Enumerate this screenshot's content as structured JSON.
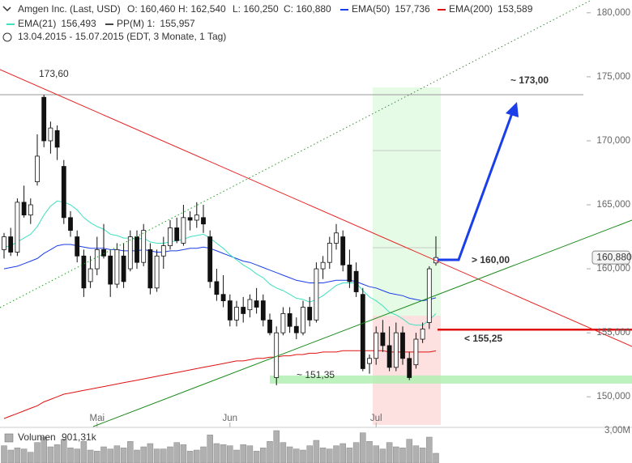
{
  "chart_data": {
    "type": "candlestick",
    "title": "Amgen Inc. (Last, USD)",
    "ohlc_header": [
      "O: 160,460",
      "H: 162,540",
      "L: 160,250",
      "C: 160,880"
    ],
    "date_range": "13.04.2015 - 15.07.2015 (EDT, 3 Monate, 1 Tag)",
    "categories": [
      null,
      null,
      null,
      null,
      null,
      null,
      null,
      null,
      null,
      null,
      null,
      null,
      null,
      null,
      "Mai",
      null,
      null,
      null,
      null,
      null,
      null,
      null,
      null,
      null,
      null,
      null,
      null,
      null,
      null,
      null,
      null,
      null,
      null,
      null,
      "Jun",
      null,
      null,
      null,
      null,
      null,
      null,
      null,
      null,
      null,
      null,
      null,
      null,
      null,
      null,
      null,
      null,
      null,
      null,
      null,
      null,
      null,
      "Jul",
      null,
      null,
      null,
      null,
      null,
      null,
      null,
      null,
      null
    ],
    "open": [
      161.5,
      162.5,
      161.3,
      165.2,
      164.2,
      166.8,
      173.4,
      170.0,
      170.8,
      168.0,
      164.0,
      162.5,
      161.0,
      159.0,
      160.0,
      161.5,
      161.0,
      158.8,
      161.0,
      160.0,
      162.5,
      160.5,
      161.5,
      158.5,
      161.0,
      161.8,
      163.2,
      162.0,
      164.0,
      163.8,
      164.0,
      162.5,
      159.0,
      158.0,
      157.5,
      156.0,
      157.0,
      156.8,
      157.5,
      157.5,
      156.0,
      151.5,
      155.0,
      156.5,
      155.5,
      155.0,
      157.0,
      156.0,
      160.0,
      160.5,
      162.0,
      162.5,
      160.3,
      159.8,
      158.0,
      152.6,
      153.0,
      155.0,
      154.0,
      152.3,
      155.0,
      153.0,
      152.5,
      154.5,
      155.8,
      160.46
    ],
    "high": [
      162.8,
      163.2,
      165.5,
      166.5,
      165.5,
      170.5,
      173.6,
      171.5,
      171.2,
      168.5,
      164.5,
      163.0,
      161.5,
      161.0,
      162.5,
      163.5,
      161.5,
      162.0,
      162.0,
      163.0,
      163.0,
      163.5,
      162.0,
      161.5,
      162.5,
      163.8,
      164.0,
      165.0,
      164.5,
      165.2,
      165.0,
      163.0,
      160.0,
      159.5,
      158.0,
      157.5,
      157.8,
      158.0,
      158.5,
      158.0,
      156.5,
      155.5,
      157.0,
      157.0,
      156.2,
      157.5,
      157.8,
      160.5,
      161.0,
      162.5,
      163.5,
      163.0,
      161.5,
      160.5,
      158.5,
      153.3,
      155.5,
      156.0,
      155.5,
      155.8,
      155.5,
      153.5,
      155.0,
      155.8,
      160.2,
      162.54
    ],
    "low": [
      160.8,
      161.0,
      161.0,
      164.0,
      163.5,
      166.5,
      169.5,
      169.0,
      168.5,
      163.5,
      162.5,
      160.5,
      157.8,
      158.5,
      159.5,
      160.8,
      157.8,
      158.5,
      158.5,
      159.8,
      160.0,
      160.2,
      158.0,
      158.2,
      160.0,
      161.5,
      162.0,
      161.8,
      163.0,
      163.2,
      162.8,
      158.5,
      157.5,
      157.0,
      155.5,
      155.5,
      155.8,
      156.2,
      156.5,
      155.5,
      154.8,
      150.9,
      154.8,
      155.0,
      154.5,
      154.8,
      155.5,
      155.8,
      159.2,
      160.0,
      161.5,
      159.8,
      158.5,
      157.8,
      152.0,
      151.8,
      152.5,
      153.5,
      152.0,
      152.0,
      152.5,
      151.3,
      152.2,
      154.2,
      155.3,
      160.25
    ],
    "close": [
      162.5,
      161.3,
      165.2,
      164.2,
      165.0,
      168.8,
      170.0,
      171.0,
      169.5,
      164.0,
      163.0,
      161.0,
      158.5,
      160.0,
      161.5,
      161.0,
      158.8,
      161.5,
      159.0,
      162.5,
      160.5,
      163.0,
      158.5,
      161.0,
      161.8,
      163.2,
      162.2,
      164.0,
      163.8,
      164.2,
      163.5,
      159.0,
      158.0,
      157.5,
      156.0,
      157.0,
      156.5,
      157.6,
      157.0,
      156.0,
      155.0,
      155.0,
      156.5,
      155.5,
      155.0,
      157.0,
      156.0,
      160.0,
      160.5,
      162.0,
      162.8,
      160.3,
      159.0,
      158.2,
      152.2,
      153.0,
      155.0,
      154.0,
      152.3,
      155.0,
      153.0,
      151.5,
      154.5,
      155.3,
      160.0,
      160.88
    ],
    "series": [
      {
        "name": "EMA(50)",
        "value_label": "157,736",
        "color": "#1a3ee8",
        "values": [
          160.0,
          160.1,
          160.2,
          160.4,
          160.6,
          160.8,
          161.2,
          161.5,
          161.8,
          161.9,
          161.9,
          161.8,
          161.7,
          161.6,
          161.6,
          161.6,
          161.5,
          161.5,
          161.4,
          161.4,
          161.4,
          161.5,
          161.4,
          161.3,
          161.3,
          161.4,
          161.4,
          161.5,
          161.6,
          161.6,
          161.7,
          161.6,
          161.4,
          161.2,
          161.0,
          160.8,
          160.6,
          160.5,
          160.3,
          160.1,
          159.9,
          159.7,
          159.5,
          159.3,
          159.1,
          159.0,
          158.9,
          158.9,
          158.9,
          159.0,
          159.1,
          159.1,
          159.1,
          159.0,
          158.8,
          158.6,
          158.5,
          158.3,
          158.1,
          158.0,
          157.9,
          157.7,
          157.6,
          157.5,
          157.6,
          157.736
        ]
      },
      {
        "name": "EMA(200)",
        "value_label": "153,589",
        "color": "#e01010",
        "values": [
          148.3,
          148.5,
          148.7,
          148.9,
          149.1,
          149.3,
          149.6,
          149.8,
          150.0,
          150.2,
          150.3,
          150.4,
          150.5,
          150.6,
          150.7,
          150.8,
          150.9,
          151.0,
          151.1,
          151.2,
          151.3,
          151.4,
          151.5,
          151.6,
          151.7,
          151.8,
          151.9,
          152.0,
          152.1,
          152.2,
          152.3,
          152.4,
          152.5,
          152.6,
          152.7,
          152.8,
          152.8,
          152.9,
          153.0,
          153.0,
          153.1,
          153.1,
          153.2,
          153.2,
          153.3,
          153.3,
          153.4,
          153.4,
          153.5,
          153.5,
          153.5,
          153.6,
          153.6,
          153.6,
          153.6,
          153.6,
          153.6,
          153.6,
          153.5,
          153.5,
          153.5,
          153.5,
          153.5,
          153.5,
          153.5,
          153.589
        ]
      },
      {
        "name": "EMA(21)",
        "value_label": "156,493",
        "color": "#40e0c0",
        "values": [
          161.7,
          161.8,
          162.1,
          162.4,
          162.7,
          163.3,
          164.2,
          164.9,
          165.3,
          165.2,
          165.0,
          164.6,
          164.0,
          163.6,
          163.3,
          163.1,
          162.7,
          162.6,
          162.4,
          162.4,
          162.3,
          162.4,
          162.1,
          162.0,
          162.0,
          162.1,
          162.2,
          162.3,
          162.5,
          162.6,
          162.7,
          162.4,
          162.0,
          161.6,
          161.1,
          160.7,
          160.3,
          160.0,
          159.6,
          159.3,
          158.8,
          158.5,
          158.3,
          158.0,
          157.7,
          157.6,
          157.4,
          157.6,
          157.9,
          158.3,
          158.7,
          158.9,
          158.9,
          158.9,
          158.3,
          157.8,
          157.5,
          157.1,
          156.6,
          156.4,
          156.1,
          155.7,
          155.6,
          155.6,
          156.0,
          156.493
        ]
      }
    ],
    "pivot": {
      "name": "PP(M) 1:",
      "value_label": "155,957",
      "color": "#444444"
    },
    "ylim": [
      147.8,
      181.0
    ],
    "yticks": [
      {
        "value": 150,
        "label": "150,000"
      },
      {
        "value": 155,
        "label": "155,000"
      },
      {
        "value": 160,
        "label": "160,000"
      },
      {
        "value": 165,
        "label": "165,000"
      },
      {
        "value": 170,
        "label": "170,000"
      },
      {
        "value": 175,
        "label": "175,000"
      },
      {
        "value": 180,
        "label": "180,000"
      }
    ],
    "annotations": [
      {
        "value": 173.6,
        "label": "173,60",
        "color": "#999999"
      },
      {
        "value": 173,
        "label": "~ 173,00",
        "color": "#1a2fcc"
      },
      {
        "value": 160,
        "label": "> 160,00",
        "color": "#1a2fcc"
      },
      {
        "value": 155.25,
        "label": "< 155,25",
        "color": "#e01010"
      },
      {
        "value": 151.35,
        "label": "~ 151,35",
        "color": "#999999"
      },
      {
        "value": 160.88,
        "label": "160,880",
        "color": "#333333"
      }
    ],
    "volume": {
      "label": "Volumen",
      "value_label": "901,31k",
      "color": "#b0b0b0",
      "ylim": [
        0,
        3
      ],
      "yticks": [
        {
          "value": 3,
          "label": "3,00M"
        }
      ],
      "values": [
        1.6,
        1.2,
        1.4,
        1.3,
        1.0,
        1.9,
        2.4,
        1.5,
        1.7,
        2.2,
        1.4,
        1.3,
        2.0,
        1.2,
        1.1,
        1.5,
        1.3,
        1.6,
        1.4,
        2.0,
        1.2,
        1.5,
        1.8,
        1.3,
        1.3,
        1.5,
        1.9,
        1.7,
        1.1,
        1.2,
        1.5,
        2.6,
        1.8,
        1.7,
        1.6,
        1.2,
        1.7,
        1.6,
        1.1,
        1.4,
        2.0,
        3.0,
        1.9,
        1.5,
        1.3,
        1.2,
        1.6,
        2.1,
        1.4,
        1.3,
        1.6,
        1.8,
        1.4,
        1.9,
        2.8,
        2.0,
        1.6,
        1.3,
        1.9,
        1.5,
        1.4,
        2.2,
        1.6,
        1.4,
        2.4,
        0.90131
      ]
    }
  }
}
